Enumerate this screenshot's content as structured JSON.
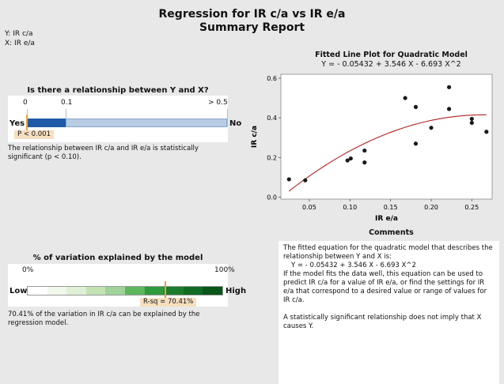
{
  "header": {
    "title_line1": "Regression for IR c/a vs IR e/a",
    "title_line2": "Summary Report"
  },
  "variables": {
    "y_label": "Y: IR c/a",
    "x_label": "X: IR e/a"
  },
  "relationship": {
    "question": "Is there a relationship between Y and X?",
    "scale_ticks": [
      "0",
      "0.1",
      "> 0.5"
    ],
    "left_label": "Yes",
    "right_label": "No",
    "p_value_text": "P < 0.001",
    "p_value": 0.001,
    "description": "The relationship between IR c/a and IR e/a is statistically significant (p < 0.10).",
    "colors": {
      "dark": "#1f5aa6",
      "light": "#b8cce4",
      "marker": "#e8a33b"
    }
  },
  "variation": {
    "question": "% of variation explained by the model",
    "scale_left": "0%",
    "scale_right": "100%",
    "left_label": "Low",
    "right_label": "High",
    "rsq_text": "R-sq = 70.41%",
    "rsq_percent": 70.41,
    "description": "70.41% of the variation in IR c/a can be explained by the regression model.",
    "segment_colors": [
      "#ffffff",
      "#f1f8ec",
      "#e0f0d6",
      "#c3e3b3",
      "#9fd39a",
      "#5eb65e",
      "#2e9a3e",
      "#1c7d2c",
      "#116a23",
      "#0a551a"
    ]
  },
  "chart_data": {
    "type": "scatter",
    "title": "Fitted Line Plot for Quadratic Model",
    "subtitle": "Y = - 0.05432 + 3.546 X - 6.693 X^2",
    "xlabel": "IR e/a",
    "ylabel": "IR c/a",
    "xlim": [
      0.015,
      0.275
    ],
    "ylim": [
      -0.01,
      0.62
    ],
    "xticks": [
      "0.05",
      "0.10",
      "0.15",
      "0.20",
      "0.25"
    ],
    "xtick_values": [
      0.05,
      0.1,
      0.15,
      0.2,
      0.25
    ],
    "yticks": [
      "0.0",
      "0.2",
      "0.4",
      "0.6"
    ],
    "ytick_values": [
      0.0,
      0.2,
      0.4,
      0.6
    ],
    "points": [
      {
        "x": 0.025,
        "y": 0.09
      },
      {
        "x": 0.045,
        "y": 0.085
      },
      {
        "x": 0.097,
        "y": 0.185
      },
      {
        "x": 0.101,
        "y": 0.195
      },
      {
        "x": 0.118,
        "y": 0.235
      },
      {
        "x": 0.118,
        "y": 0.175
      },
      {
        "x": 0.168,
        "y": 0.5
      },
      {
        "x": 0.181,
        "y": 0.455
      },
      {
        "x": 0.181,
        "y": 0.27
      },
      {
        "x": 0.2,
        "y": 0.35
      },
      {
        "x": 0.222,
        "y": 0.555
      },
      {
        "x": 0.222,
        "y": 0.445
      },
      {
        "x": 0.25,
        "y": 0.395
      },
      {
        "x": 0.25,
        "y": 0.375
      },
      {
        "x": 0.268,
        "y": 0.33
      }
    ],
    "fit": {
      "a": -0.05432,
      "b": 3.546,
      "c": -6.693,
      "x_range": [
        0.025,
        0.268
      ]
    },
    "colors": {
      "points": "#1a1a1a",
      "fit": "#b22222"
    }
  },
  "comments": {
    "title": "Comments",
    "line1": "The fitted equation for the quadratic model that describes the relationship between Y and X is:",
    "equation": "Y = - 0.05432 + 3.546 X - 6.693 X^2",
    "line2": "If the model fits the data well, this equation can be used to predict IR c/a for a value of IR e/a, or find the settings for IR e/a that correspond to a desired value or range of values for IR c/a.",
    "line3": "A statistically significant relationship does not imply that X causes Y."
  }
}
